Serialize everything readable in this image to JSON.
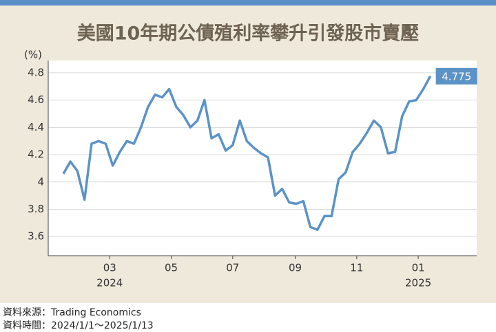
{
  "chart_data": {
    "type": "line",
    "title": "美國10年期公債殖利率攀升引發股市賣壓",
    "y_unit_label": "(%)",
    "x": [
      "2024-01-15",
      "2024-01-22",
      "2024-01-29",
      "2024-02-05",
      "2024-02-12",
      "2024-02-19",
      "2024-02-26",
      "2024-03-04",
      "2024-03-11",
      "2024-03-18",
      "2024-03-25",
      "2024-04-01",
      "2024-04-08",
      "2024-04-15",
      "2024-04-22",
      "2024-04-29",
      "2024-05-06",
      "2024-05-13",
      "2024-05-20",
      "2024-05-27",
      "2024-06-03",
      "2024-06-10",
      "2024-06-17",
      "2024-06-24",
      "2024-07-01",
      "2024-07-08",
      "2024-07-15",
      "2024-07-22",
      "2024-07-29",
      "2024-08-05",
      "2024-08-12",
      "2024-08-19",
      "2024-08-26",
      "2024-09-02",
      "2024-09-09",
      "2024-09-16",
      "2024-09-23",
      "2024-09-30",
      "2024-10-07",
      "2024-10-14",
      "2024-10-21",
      "2024-10-28",
      "2024-11-04",
      "2024-11-11",
      "2024-11-18",
      "2024-11-25",
      "2024-12-02",
      "2024-12-09",
      "2024-12-16",
      "2024-12-23",
      "2024-12-30",
      "2025-01-06",
      "2025-01-13"
    ],
    "series": [
      {
        "color": "#5b93c7",
        "values": [
          4.06,
          4.15,
          4.08,
          3.87,
          4.28,
          4.3,
          4.28,
          4.12,
          4.22,
          4.3,
          4.28,
          4.4,
          4.55,
          4.64,
          4.62,
          4.68,
          4.55,
          4.49,
          4.4,
          4.45,
          4.6,
          4.32,
          4.35,
          4.23,
          4.27,
          4.45,
          4.3,
          4.25,
          4.21,
          4.18,
          3.9,
          3.95,
          3.85,
          3.84,
          3.86,
          3.67,
          3.65,
          3.75,
          3.75,
          4.02,
          4.07,
          4.22,
          4.28,
          4.36,
          4.45,
          4.4,
          4.21,
          4.22,
          4.48,
          4.59,
          4.6,
          4.68,
          4.775
        ]
      }
    ],
    "xlim": [
      "2023-12-31",
      "2025-02-28"
    ],
    "xticks": [
      {
        "value": "2024-03-01",
        "label": "03"
      },
      {
        "value": "2024-05-01",
        "label": "05"
      },
      {
        "value": "2024-07-01",
        "label": "07"
      },
      {
        "value": "2024-09-01",
        "label": "09"
      },
      {
        "value": "2024-11-01",
        "label": "11"
      },
      {
        "value": "2025-01-01",
        "label": "01"
      }
    ],
    "xtick_years": [
      {
        "value": "2024-03-01",
        "label": "2024"
      },
      {
        "value": "2025-01-01",
        "label": "2025"
      }
    ],
    "ylim": [
      3.46,
      4.89
    ],
    "yticks": [
      3.6,
      3.8,
      4,
      4.2,
      4.4,
      4.6,
      4.8
    ],
    "grid": true,
    "source": "資料來源：Trading Economics",
    "period": "資料時間：2024/1/1～2025/1/13"
  }
}
